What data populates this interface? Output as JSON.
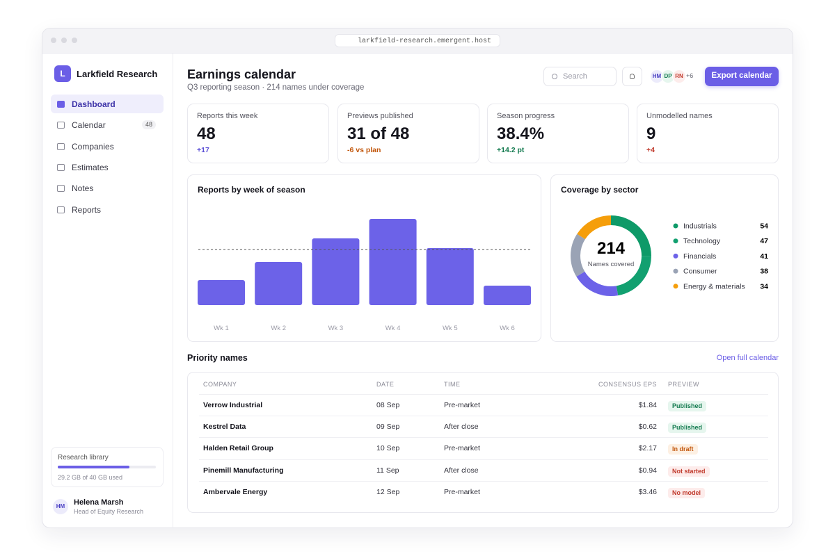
{
  "browser": {
    "url": "larkfield-research.emergent.host"
  },
  "sidebar": {
    "brand": "Larkfield Research",
    "brand_initial": "L",
    "nav": [
      {
        "label": "Dashboard",
        "active": true
      },
      {
        "label": "Calendar",
        "badge": "48"
      },
      {
        "label": "Companies"
      },
      {
        "label": "Estimates"
      },
      {
        "label": "Notes"
      },
      {
        "label": "Reports"
      }
    ],
    "storage": {
      "title": "Research library",
      "used": 29.2,
      "total": 40,
      "label": "29.2 GB of 40 GB used"
    },
    "user": {
      "initials": "HM",
      "name": "Helena Marsh",
      "role": "Head of Equity Research"
    }
  },
  "header": {
    "title": "Earnings calendar",
    "subtitle": "Q3 reporting season · 214 names under coverage",
    "search": "Search",
    "avatars": [
      "HM",
      "DP",
      "RN"
    ],
    "more": "+6",
    "button": "Export calendar"
  },
  "kpis": [
    {
      "label": "Reports this week",
      "value": "48",
      "delta": "+17",
      "delta_color": "#5b4fd6"
    },
    {
      "label": "Previews published",
      "value": "31 of 48",
      "delta": "-6 vs plan",
      "delta_color": "#c2570c"
    },
    {
      "label": "Season progress",
      "value": "38.4%",
      "delta": "+14.2 pt",
      "delta_color": "#137a4f"
    },
    {
      "label": "Unmodelled names",
      "value": "9",
      "delta": "+4",
      "delta_color": "#c0392b"
    }
  ],
  "chart_data": [
    {
      "type": "bar",
      "title": "Reports by week of season",
      "categories": [
        "Wk 1",
        "Wk 2",
        "Wk 3",
        "Wk 4",
        "Wk 5",
        "Wk 6"
      ],
      "values": [
        18,
        31,
        48,
        62,
        41,
        14
      ],
      "color": "#6c62e8",
      "reference_line": 40
    },
    {
      "type": "pie",
      "title": "Coverage by sector",
      "total": 214,
      "center_label": "Names covered",
      "categories": [
        "Industrials",
        "Technology",
        "Financials",
        "Consumer",
        "Energy & materials"
      ],
      "values": [
        54,
        47,
        41,
        38,
        34
      ],
      "colors": [
        "#0e9a68",
        "#12a070",
        "#6c62e8",
        "#9aa3b5",
        "#f59e0b"
      ]
    }
  ],
  "table": {
    "title": "Priority names",
    "link": "Open full calendar",
    "columns": [
      "COMPANY",
      "DATE",
      "TIME",
      "CONSENSUS EPS",
      "PREVIEW"
    ],
    "rows": [
      [
        "Verrow Industrial",
        "08 Sep",
        "Pre-market",
        "$1.84",
        "Published"
      ],
      [
        "Kestrel Data",
        "09 Sep",
        "After close",
        "$0.62",
        "Published"
      ],
      [
        "Halden Retail Group",
        "10 Sep",
        "Pre-market",
        "$2.17",
        "In draft"
      ],
      [
        "Pinemill Manufacturing",
        "11 Sep",
        "After close",
        "$0.94",
        "Not started"
      ],
      [
        "Ambervale Energy",
        "12 Sep",
        "Pre-market",
        "$3.46",
        "No model"
      ]
    ],
    "status_colors": {
      "Published": [
        "#e6f6ee",
        "#137a4f"
      ],
      "In draft": [
        "#fdf0e3",
        "#c2570c"
      ],
      "Not started": [
        "#fdeceb",
        "#c0392b"
      ],
      "No model": [
        "#fdeceb",
        "#c0392b"
      ]
    }
  }
}
